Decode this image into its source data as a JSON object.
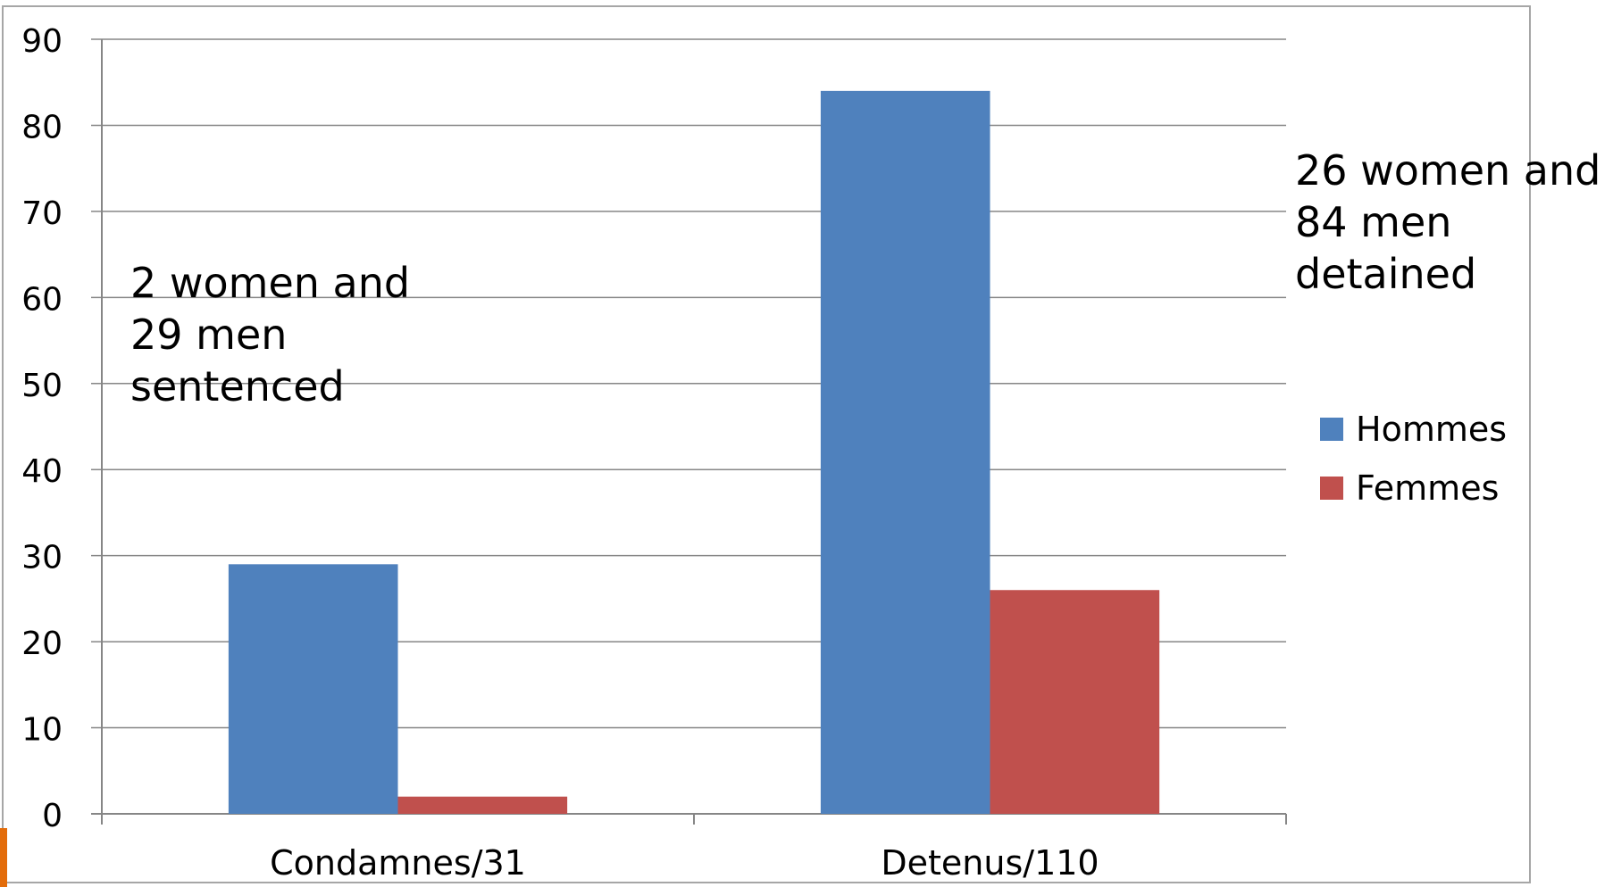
{
  "chart_data": {
    "type": "bar",
    "categories": [
      "Condamnes/31",
      "Detenus/110"
    ],
    "series": [
      {
        "name": "Hommes",
        "values": [
          29,
          84
        ],
        "color": "#4f81bd"
      },
      {
        "name": "Femmes",
        "values": [
          2,
          26
        ],
        "color": "#c0504d"
      }
    ],
    "ylim": [
      0,
      90
    ],
    "yticks": [
      0,
      10,
      20,
      30,
      40,
      50,
      60,
      70,
      80,
      90
    ],
    "title": "",
    "xlabel": "",
    "ylabel": "",
    "grid": true,
    "legend_position": "right",
    "annotations": [
      "2 women and\n29 men\nsentenced",
      "26 women and\n84 men\ndetained"
    ]
  },
  "colors": {
    "gridline": "#868686",
    "frame": "#a6a6a6",
    "accent": "#e36c0a"
  }
}
